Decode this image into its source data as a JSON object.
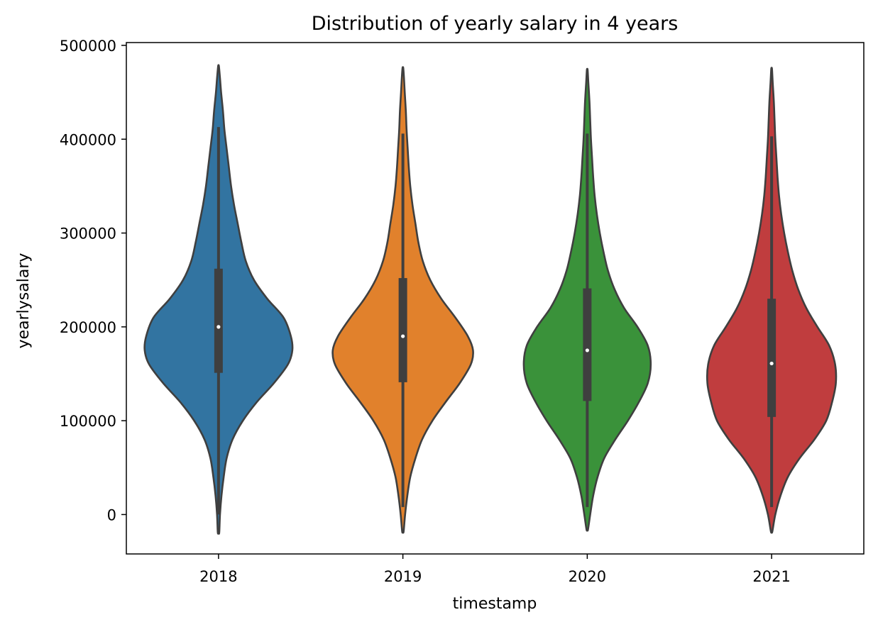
{
  "chart_data": {
    "type": "violin",
    "title": "Distribution of yearly salary in 4 years",
    "xlabel": "timestamp",
    "ylabel": "yearlysalary",
    "ylim": [
      -42000,
      503000
    ],
    "yticks": [
      0,
      100000,
      200000,
      300000,
      400000,
      500000
    ],
    "ytick_labels": [
      "0",
      "100000",
      "200000",
      "300000",
      "400000",
      "500000"
    ],
    "categories": [
      "2018",
      "2019",
      "2020",
      "2021"
    ],
    "grid": false,
    "legend": "none",
    "inner_color": "#3f3f3f",
    "edge_color": "#3f3f3f",
    "series": [
      {
        "category": "2018",
        "color": "#3274a1",
        "median": 200000,
        "q1": 151000,
        "q3": 262000,
        "whisker_low": 0,
        "whisker_high": 413000,
        "range": [
          -19000,
          478000
        ],
        "profile": [
          [
            -19000,
            0.01
          ],
          [
            0,
            0.02
          ],
          [
            20000,
            0.04
          ],
          [
            40000,
            0.07
          ],
          [
            60000,
            0.11
          ],
          [
            80000,
            0.19
          ],
          [
            100000,
            0.33
          ],
          [
            120000,
            0.52
          ],
          [
            140000,
            0.75
          ],
          [
            160000,
            0.94
          ],
          [
            175000,
            1.0
          ],
          [
            190000,
            0.98
          ],
          [
            210000,
            0.88
          ],
          [
            230000,
            0.66
          ],
          [
            250000,
            0.48
          ],
          [
            270000,
            0.37
          ],
          [
            290000,
            0.31
          ],
          [
            310000,
            0.26
          ],
          [
            330000,
            0.21
          ],
          [
            350000,
            0.17
          ],
          [
            370000,
            0.14
          ],
          [
            390000,
            0.11
          ],
          [
            410000,
            0.08
          ],
          [
            430000,
            0.06
          ],
          [
            450000,
            0.035
          ],
          [
            465000,
            0.02
          ],
          [
            478000,
            0.005
          ]
        ]
      },
      {
        "category": "2019",
        "color": "#e1812c",
        "median": 190000,
        "q1": 141000,
        "q3": 252000,
        "whisker_low": 8000,
        "whisker_high": 406000,
        "range": [
          -18000,
          476000
        ],
        "profile": [
          [
            -18000,
            0.01
          ],
          [
            0,
            0.03
          ],
          [
            20000,
            0.06
          ],
          [
            40000,
            0.1
          ],
          [
            60000,
            0.17
          ],
          [
            80000,
            0.26
          ],
          [
            100000,
            0.4
          ],
          [
            120000,
            0.58
          ],
          [
            140000,
            0.77
          ],
          [
            160000,
            0.92
          ],
          [
            175000,
            0.95
          ],
          [
            190000,
            0.88
          ],
          [
            210000,
            0.71
          ],
          [
            230000,
            0.52
          ],
          [
            250000,
            0.37
          ],
          [
            270000,
            0.27
          ],
          [
            290000,
            0.21
          ],
          [
            310000,
            0.17
          ],
          [
            330000,
            0.13
          ],
          [
            350000,
            0.1
          ],
          [
            370000,
            0.08
          ],
          [
            390000,
            0.065
          ],
          [
            410000,
            0.05
          ],
          [
            430000,
            0.04
          ],
          [
            450000,
            0.025
          ],
          [
            465000,
            0.015
          ],
          [
            476000,
            0.005
          ]
        ]
      },
      {
        "category": "2020",
        "color": "#3a923a",
        "median": 175000,
        "q1": 121000,
        "q3": 241000,
        "whisker_low": 8000,
        "whisker_high": 406000,
        "range": [
          -16000,
          474000
        ],
        "profile": [
          [
            -16000,
            0.01
          ],
          [
            0,
            0.04
          ],
          [
            20000,
            0.08
          ],
          [
            40000,
            0.14
          ],
          [
            60000,
            0.23
          ],
          [
            80000,
            0.38
          ],
          [
            100000,
            0.55
          ],
          [
            120000,
            0.7
          ],
          [
            140000,
            0.82
          ],
          [
            160000,
            0.86
          ],
          [
            180000,
            0.82
          ],
          [
            200000,
            0.68
          ],
          [
            220000,
            0.5
          ],
          [
            240000,
            0.37
          ],
          [
            260000,
            0.28
          ],
          [
            280000,
            0.22
          ],
          [
            300000,
            0.17
          ],
          [
            320000,
            0.13
          ],
          [
            340000,
            0.1
          ],
          [
            360000,
            0.08
          ],
          [
            380000,
            0.065
          ],
          [
            400000,
            0.05
          ],
          [
            420000,
            0.04
          ],
          [
            440000,
            0.03
          ],
          [
            460000,
            0.015
          ],
          [
            474000,
            0.005
          ]
        ]
      },
      {
        "category": "2021",
        "color": "#c03d3e",
        "median": 161000,
        "q1": 104000,
        "q3": 230000,
        "whisker_low": 8000,
        "whisker_high": 403000,
        "range": [
          -18000,
          475000
        ],
        "profile": [
          [
            -18000,
            0.01
          ],
          [
            0,
            0.05
          ],
          [
            20000,
            0.12
          ],
          [
            40000,
            0.22
          ],
          [
            60000,
            0.38
          ],
          [
            80000,
            0.58
          ],
          [
            100000,
            0.74
          ],
          [
            120000,
            0.82
          ],
          [
            140000,
            0.87
          ],
          [
            160000,
            0.86
          ],
          [
            180000,
            0.78
          ],
          [
            200000,
            0.62
          ],
          [
            220000,
            0.47
          ],
          [
            240000,
            0.36
          ],
          [
            260000,
            0.28
          ],
          [
            280000,
            0.22
          ],
          [
            300000,
            0.17
          ],
          [
            320000,
            0.13
          ],
          [
            340000,
            0.1
          ],
          [
            360000,
            0.08
          ],
          [
            380000,
            0.065
          ],
          [
            400000,
            0.05
          ],
          [
            420000,
            0.04
          ],
          [
            440000,
            0.03
          ],
          [
            460000,
            0.015
          ],
          [
            475000,
            0.005
          ]
        ]
      }
    ]
  }
}
